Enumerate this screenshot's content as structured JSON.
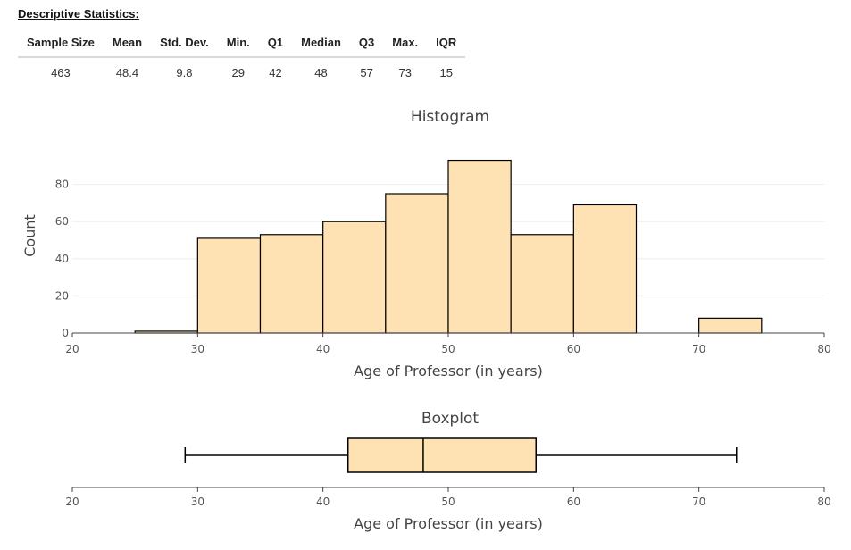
{
  "descriptive_statistics": {
    "title": "Descriptive Statistics:",
    "headers": [
      "Sample Size",
      "Mean",
      "Std. Dev.",
      "Min.",
      "Q1",
      "Median",
      "Q3",
      "Max.",
      "IQR"
    ],
    "values": [
      "463",
      "48.4",
      "9.8",
      "29",
      "42",
      "48",
      "57",
      "73",
      "15"
    ]
  },
  "chart_data": [
    {
      "type": "bar",
      "title": "Histogram",
      "xlabel": "Age of Professor (in years)",
      "ylabel": "Count",
      "bins": [
        {
          "start": 25,
          "end": 30,
          "count": 1
        },
        {
          "start": 30,
          "end": 35,
          "count": 51
        },
        {
          "start": 35,
          "end": 40,
          "count": 53
        },
        {
          "start": 40,
          "end": 45,
          "count": 60
        },
        {
          "start": 45,
          "end": 50,
          "count": 75
        },
        {
          "start": 50,
          "end": 55,
          "count": 93
        },
        {
          "start": 55,
          "end": 60,
          "count": 53
        },
        {
          "start": 60,
          "end": 65,
          "count": 69
        },
        {
          "start": 65,
          "end": 70,
          "count": 0
        },
        {
          "start": 70,
          "end": 75,
          "count": 8
        }
      ],
      "xlim": [
        20,
        80
      ],
      "ylim": [
        0,
        100
      ],
      "xticks": [
        20,
        30,
        40,
        50,
        60,
        70,
        80
      ],
      "yticks": [
        0,
        20,
        40,
        60,
        80
      ],
      "bar_color": "#ffe2b3",
      "edge_color": "#000000",
      "grid": true
    },
    {
      "type": "boxplot",
      "title": "Boxplot",
      "xlabel": "Age of Professor (in years)",
      "min": 29,
      "q1": 42,
      "median": 48,
      "q3": 57,
      "max": 73,
      "xlim": [
        20,
        80
      ],
      "xticks": [
        20,
        30,
        40,
        50,
        60,
        70,
        80
      ],
      "box_color": "#ffe2b3",
      "edge_color": "#000000"
    }
  ]
}
